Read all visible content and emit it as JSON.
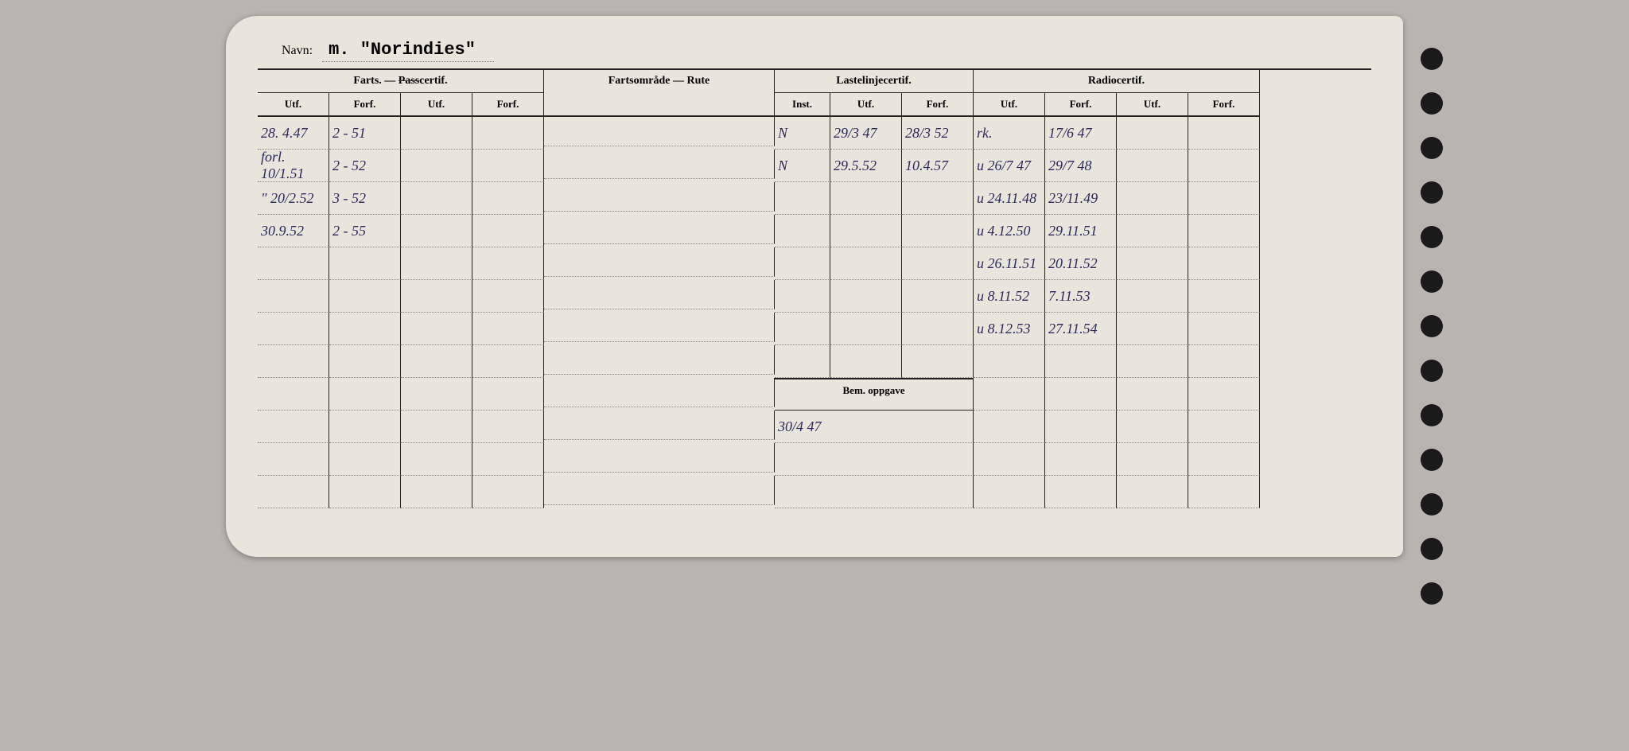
{
  "name_label": "Navn:",
  "name_value": "m. \"Norindies\"",
  "headers": {
    "farts": "Farts. — ",
    "pass_struck": "Pass",
    "certif": "certif.",
    "rute": "Fartsområde — Rute",
    "laste": "Lastelinjecertif.",
    "radio": "Radiocertif.",
    "utf": "Utf.",
    "forf": "Forf.",
    "inst": "Inst.",
    "bem": "Bem. oppgave"
  },
  "farts_rows": [
    {
      "utf": "28. 4.47",
      "forf": "2 - 51"
    },
    {
      "utf": "forl. 10/1.51",
      "forf": "2 - 52"
    },
    {
      "utf": "\" 20/2.52",
      "forf": "3 - 52"
    },
    {
      "utf": "30.9.52",
      "forf": "2 - 55"
    }
  ],
  "laste_rows": [
    {
      "inst": "N",
      "utf": "29/3 47",
      "forf": "28/3 52"
    },
    {
      "inst": "N",
      "utf": "29.5.52",
      "forf": "10.4.57"
    }
  ],
  "radio_rows": [
    {
      "utf": "rk.",
      "forf": "17/6 47"
    },
    {
      "utf": "u 26/7 47",
      "forf": "29/7 48"
    },
    {
      "utf": "u 24.11.48",
      "forf": "23/11.49"
    },
    {
      "utf": "u 4.12.50",
      "forf": "29.11.51"
    },
    {
      "utf": "u 26.11.51",
      "forf": "20.11.52"
    },
    {
      "utf": "u 8.11.52",
      "forf": "7.11.53"
    },
    {
      "utf": "u 8.12.53",
      "forf": "27.11.54"
    }
  ],
  "bem_value": "30/4 47",
  "colors": {
    "card_bg": "#e8e5dd",
    "page_bg": "#b8b4b0",
    "ink": "#2a2a5a",
    "line": "#222"
  },
  "num_body_rows": 12,
  "punch_hole_count": 13
}
